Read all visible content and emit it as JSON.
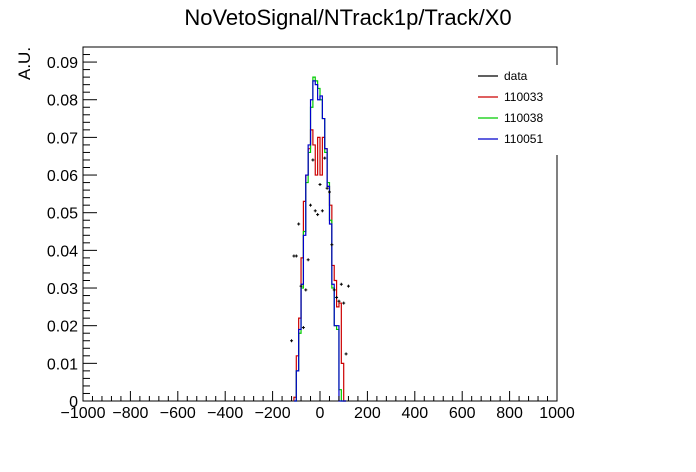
{
  "chart_data": {
    "type": "step-histogram",
    "title": "NoVetoSignal/NTrack1p/Track/X0",
    "xlabel": "",
    "ylabel": "A.U.",
    "xlim": [
      -1000,
      1000
    ],
    "ylim": [
      0,
      0.094
    ],
    "x_ticks": [
      -1000,
      -800,
      -600,
      -400,
      -200,
      0,
      200,
      400,
      600,
      800,
      1000
    ],
    "x_tick_labels": [
      "−1000",
      "−800",
      "−600",
      "−400",
      "−200",
      "0",
      "200",
      "400",
      "600",
      "800",
      "1000"
    ],
    "y_ticks": [
      0,
      0.01,
      0.02,
      0.03,
      0.04,
      0.05,
      0.06,
      0.07,
      0.08,
      0.09
    ],
    "y_tick_labels": [
      "0",
      "0.01",
      "0.02",
      "0.03",
      "0.04",
      "0.05",
      "0.06",
      "0.07",
      "0.08",
      "0.09"
    ],
    "legend_position": "top-right",
    "bin_edges": [
      -110,
      -100,
      -90,
      -80,
      -70,
      -60,
      -50,
      -40,
      -30,
      -20,
      -10,
      0,
      10,
      20,
      30,
      40,
      50,
      60,
      70,
      80,
      90,
      100,
      110
    ],
    "series": [
      {
        "name": "data",
        "color": "#000000",
        "style": "points",
        "x": [
          -120,
          -110,
          -100,
          -90,
          -80,
          -70,
          -60,
          -50,
          -40,
          -30,
          -20,
          -10,
          0,
          10,
          20,
          30,
          40,
          50,
          60,
          70,
          80,
          90,
          100,
          110,
          120
        ],
        "y": [
          0.016,
          0.0385,
          0.0385,
          0.047,
          0.0305,
          0.0195,
          0.0295,
          0.0375,
          0.052,
          0.064,
          0.0505,
          0.0495,
          0.0575,
          0.0505,
          0.0645,
          0.0565,
          0.0555,
          0.0415,
          0.0295,
          0.0275,
          0.0265,
          0.031,
          0.026,
          0.0125,
          0.0305
        ]
      },
      {
        "name": "110033",
        "color": "#cc0000",
        "style": "step",
        "values": [
          0.001,
          0.012,
          0.022,
          0.038,
          0.053,
          0.06,
          0.067,
          0.072,
          0.068,
          0.06,
          0.07,
          0.06,
          0.07,
          0.067,
          0.057,
          0.052,
          0.036,
          0.032,
          0.025,
          0.026,
          0.01,
          0.0
        ]
      },
      {
        "name": "110038",
        "color": "#00cc00",
        "style": "step",
        "values": [
          0.0,
          0.008,
          0.018,
          0.03,
          0.045,
          0.058,
          0.066,
          0.078,
          0.086,
          0.085,
          0.083,
          0.08,
          0.075,
          0.066,
          0.058,
          0.048,
          0.03,
          0.02,
          0.019,
          0.003,
          0.0,
          0.0
        ]
      },
      {
        "name": "110051",
        "color": "#0000cc",
        "style": "step",
        "values": [
          0.0,
          0.008,
          0.019,
          0.031,
          0.044,
          0.06,
          0.068,
          0.08,
          0.085,
          0.084,
          0.08,
          0.081,
          0.075,
          0.067,
          0.057,
          0.047,
          0.031,
          0.02,
          0.02,
          0.0,
          0.0,
          0.0
        ]
      }
    ]
  }
}
